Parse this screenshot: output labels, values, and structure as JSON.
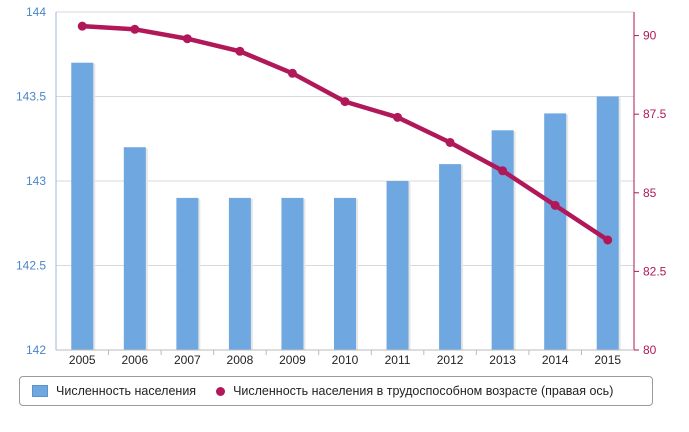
{
  "chart_data": {
    "type": "bar+line",
    "categories": [
      "2005",
      "2006",
      "2007",
      "2008",
      "2009",
      "2010",
      "2011",
      "2012",
      "2013",
      "2014",
      "2015"
    ],
    "series": [
      {
        "name": "Численность населения",
        "type": "bar",
        "axis": "left",
        "color": "#6fa8e0",
        "values": [
          143.7,
          143.2,
          142.9,
          142.9,
          142.9,
          142.9,
          143.0,
          143.1,
          143.3,
          143.4,
          143.5
        ]
      },
      {
        "name": "Численность населения в трудоспособном возрасте (правая ось)",
        "type": "line",
        "axis": "right",
        "color": "#b0185a",
        "values": [
          90.3,
          90.2,
          89.9,
          89.5,
          88.8,
          87.9,
          87.4,
          86.6,
          85.7,
          84.6,
          83.5
        ]
      }
    ],
    "y_left": {
      "min": 142,
      "max": 144,
      "ticks": [
        "142",
        "142.5",
        "143",
        "143.5",
        "144"
      ]
    },
    "y_right": {
      "min": 80,
      "max": 90.75,
      "ticks": [
        "80",
        "82.5",
        "85",
        "87.5",
        "90"
      ]
    },
    "grid": "horizontal",
    "legend": "bottom"
  }
}
